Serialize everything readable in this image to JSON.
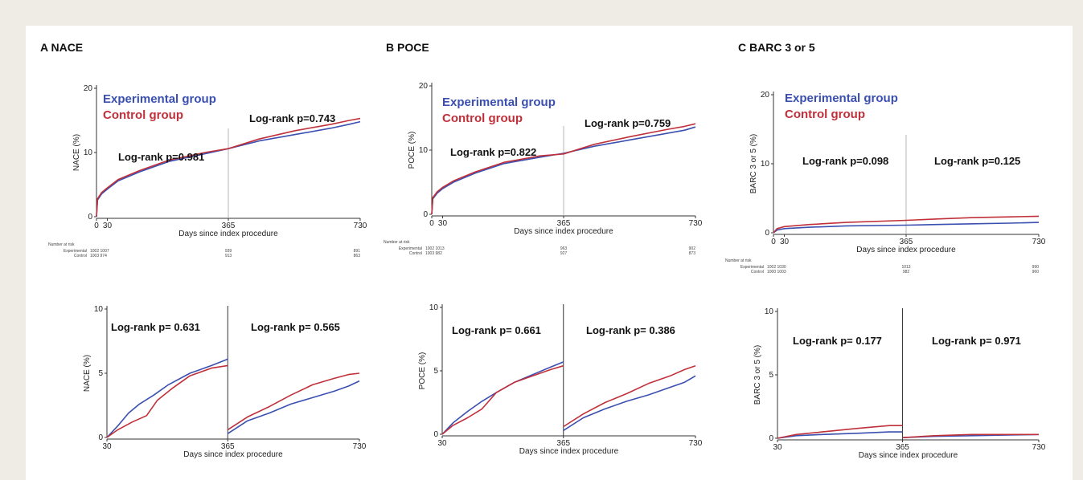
{
  "colors": {
    "experimental": "#3a4fb0",
    "control": "#c0303a"
  },
  "legend": {
    "experimental": "Experimental group",
    "control": "Control group"
  },
  "chart_data": [
    {
      "id": "A",
      "type": "line",
      "title": "A  NACE",
      "ylabel": "NACE (%)",
      "xlabel": "Days since index procedure",
      "top": {
        "ylim": [
          0,
          20
        ],
        "yticks": [
          "0",
          "10",
          "20"
        ],
        "xticks": [
          "0",
          "30",
          "365",
          "730"
        ],
        "pvalues": [
          "Log-rank p=0.981",
          "Log-rank p=0.743"
        ],
        "series": [
          {
            "name": "Experimental group",
            "points": [
              [
                0,
                0
              ],
              [
                3,
                2.6
              ],
              [
                15,
                3.6
              ],
              [
                30,
                4.3
              ],
              [
                60,
                5.6
              ],
              [
                120,
                7.0
              ],
              [
                200,
                8.6
              ],
              [
                300,
                9.8
              ],
              [
                365,
                10.6
              ],
              [
                450,
                11.8
              ],
              [
                550,
                12.8
              ],
              [
                650,
                13.8
              ],
              [
                700,
                14.4
              ],
              [
                730,
                14.8
              ]
            ]
          },
          {
            "name": "Control group",
            "points": [
              [
                0,
                0
              ],
              [
                3,
                2.8
              ],
              [
                15,
                3.8
              ],
              [
                30,
                4.5
              ],
              [
                60,
                5.8
              ],
              [
                120,
                7.2
              ],
              [
                200,
                8.8
              ],
              [
                300,
                10.0
              ],
              [
                365,
                10.6
              ],
              [
                450,
                12.1
              ],
              [
                550,
                13.4
              ],
              [
                650,
                14.4
              ],
              [
                700,
                15.0
              ],
              [
                730,
                15.3
              ]
            ]
          }
        ],
        "risk": {
          "label": "Number at risk",
          "rows": [
            {
              "name": "Experimental",
              "values": [
                "1002 1007",
                "939",
                "891"
              ]
            },
            {
              "name": "Control",
              "values": [
                "1003 974",
                "913",
                "863"
              ]
            }
          ]
        }
      },
      "bottom": {
        "ylim": [
          0,
          10
        ],
        "yticks": [
          "0",
          "5",
          "10"
        ],
        "xticks": [
          "30",
          "365",
          "730"
        ],
        "pvalues": [
          "Log-rank p= 0.631",
          "Log-rank p= 0.565"
        ],
        "series": [
          {
            "name": "Experimental group",
            "points": [
              [
                30,
                0
              ],
              [
                60,
                0.9
              ],
              [
                90,
                1.9
              ],
              [
                120,
                2.6
              ],
              [
                160,
                3.3
              ],
              [
                200,
                4.1
              ],
              [
                260,
                5.0
              ],
              [
                320,
                5.6
              ],
              [
                365,
                6.1
              ],
              [
                365,
                0.3
              ],
              [
                420,
                1.3
              ],
              [
                480,
                1.9
              ],
              [
                540,
                2.6
              ],
              [
                600,
                3.1
              ],
              [
                660,
                3.6
              ],
              [
                700,
                4.0
              ],
              [
                730,
                4.4
              ]
            ]
          },
          {
            "name": "Control group",
            "points": [
              [
                30,
                0
              ],
              [
                60,
                0.6
              ],
              [
                100,
                1.2
              ],
              [
                140,
                1.7
              ],
              [
                170,
                2.9
              ],
              [
                210,
                3.8
              ],
              [
                260,
                4.8
              ],
              [
                320,
                5.4
              ],
              [
                365,
                5.6
              ],
              [
                365,
                0.6
              ],
              [
                420,
                1.6
              ],
              [
                480,
                2.4
              ],
              [
                540,
                3.3
              ],
              [
                600,
                4.1
              ],
              [
                660,
                4.6
              ],
              [
                700,
                4.9
              ],
              [
                730,
                5.0
              ]
            ]
          }
        ]
      }
    },
    {
      "id": "B",
      "type": "line",
      "title": "B  POCE",
      "ylabel": "POCE (%)",
      "xlabel": "Days since index procedure",
      "top": {
        "ylim": [
          0,
          20
        ],
        "yticks": [
          "0",
          "10",
          "20"
        ],
        "xticks": [
          "0",
          "30",
          "365",
          "730"
        ],
        "pvalues": [
          "Log-rank p=0.822",
          "Log-rank p=0.759"
        ],
        "series": [
          {
            "name": "Experimental group",
            "points": [
              [
                0,
                0
              ],
              [
                3,
                2.4
              ],
              [
                15,
                3.3
              ],
              [
                30,
                4.0
              ],
              [
                60,
                5.0
              ],
              [
                120,
                6.4
              ],
              [
                200,
                7.9
              ],
              [
                300,
                8.9
              ],
              [
                365,
                9.5
              ],
              [
                450,
                10.6
              ],
              [
                550,
                11.6
              ],
              [
                650,
                12.6
              ],
              [
                700,
                13.1
              ],
              [
                730,
                13.6
              ]
            ]
          },
          {
            "name": "Control group",
            "points": [
              [
                0,
                0
              ],
              [
                3,
                2.6
              ],
              [
                15,
                3.5
              ],
              [
                30,
                4.2
              ],
              [
                60,
                5.2
              ],
              [
                120,
                6.6
              ],
              [
                200,
                8.1
              ],
              [
                300,
                9.1
              ],
              [
                365,
                9.4
              ],
              [
                450,
                10.9
              ],
              [
                550,
                12.1
              ],
              [
                650,
                13.2
              ],
              [
                700,
                13.7
              ],
              [
                730,
                14.1
              ]
            ]
          }
        ],
        "risk": {
          "label": "Number at risk",
          "rows": [
            {
              "name": "Experimental",
              "values": [
                "1002 1013",
                "963",
                "902"
              ]
            },
            {
              "name": "Control",
              "values": [
                "1003 982",
                "927",
                "873"
              ]
            }
          ]
        }
      },
      "bottom": {
        "ylim": [
          0,
          10
        ],
        "yticks": [
          "0",
          "5",
          "10"
        ],
        "xticks": [
          "30",
          "365",
          "730"
        ],
        "pvalues": [
          "Log-rank p= 0.661",
          "Log-rank p= 0.386"
        ],
        "series": [
          {
            "name": "Experimental group",
            "points": [
              [
                30,
                0
              ],
              [
                60,
                0.9
              ],
              [
                100,
                1.8
              ],
              [
                140,
                2.6
              ],
              [
                180,
                3.3
              ],
              [
                230,
                4.1
              ],
              [
                280,
                4.7
              ],
              [
                330,
                5.3
              ],
              [
                365,
                5.7
              ],
              [
                365,
                0.3
              ],
              [
                420,
                1.3
              ],
              [
                480,
                2.0
              ],
              [
                540,
                2.6
              ],
              [
                600,
                3.1
              ],
              [
                660,
                3.7
              ],
              [
                700,
                4.1
              ],
              [
                730,
                4.6
              ]
            ]
          },
          {
            "name": "Control group",
            "points": [
              [
                30,
                0
              ],
              [
                60,
                0.7
              ],
              [
                100,
                1.3
              ],
              [
                140,
                2.0
              ],
              [
                180,
                3.3
              ],
              [
                230,
                4.1
              ],
              [
                280,
                4.6
              ],
              [
                330,
                5.1
              ],
              [
                365,
                5.4
              ],
              [
                365,
                0.6
              ],
              [
                420,
                1.6
              ],
              [
                480,
                2.5
              ],
              [
                540,
                3.2
              ],
              [
                600,
                4.0
              ],
              [
                660,
                4.6
              ],
              [
                700,
                5.1
              ],
              [
                730,
                5.4
              ]
            ]
          }
        ]
      }
    },
    {
      "id": "C",
      "type": "line",
      "title": "C  BARC 3 or 5",
      "ylabel": "BARC 3 or 5 (%)",
      "xlabel": "Days since index procedure",
      "top": {
        "ylim": [
          0,
          20
        ],
        "yticks": [
          "0",
          "10",
          "20"
        ],
        "xticks": [
          "0",
          "30",
          "365",
          "730"
        ],
        "pvalues": [
          "Log-rank p=0.098",
          "Log-rank p=0.125"
        ],
        "series": [
          {
            "name": "Experimental group",
            "points": [
              [
                0,
                0
              ],
              [
                10,
                0.4
              ],
              [
                30,
                0.6
              ],
              [
                100,
                0.8
              ],
              [
                200,
                1.0
              ],
              [
                365,
                1.1
              ],
              [
                450,
                1.2
              ],
              [
                550,
                1.3
              ],
              [
                650,
                1.4
              ],
              [
                730,
                1.5
              ]
            ]
          },
          {
            "name": "Control group",
            "points": [
              [
                0,
                0
              ],
              [
                10,
                0.6
              ],
              [
                30,
                0.9
              ],
              [
                100,
                1.2
              ],
              [
                200,
                1.5
              ],
              [
                365,
                1.8
              ],
              [
                450,
                2.0
              ],
              [
                550,
                2.2
              ],
              [
                650,
                2.3
              ],
              [
                730,
                2.4
              ]
            ]
          }
        ],
        "risk": {
          "label": "Number at risk",
          "rows": [
            {
              "name": "Experimental",
              "values": [
                "1002 1030",
                "1013",
                "990"
              ]
            },
            {
              "name": "Control",
              "values": [
                "1000 1003",
                "982",
                "960"
              ]
            }
          ]
        }
      },
      "bottom": {
        "ylim": [
          0,
          10
        ],
        "yticks": [
          "0",
          "5",
          "10"
        ],
        "xticks": [
          "30",
          "365",
          "730"
        ],
        "pvalues": [
          "Log-rank p= 0.177",
          "Log-rank p= 0.971"
        ],
        "series": [
          {
            "name": "Experimental group",
            "points": [
              [
                30,
                0
              ],
              [
                80,
                0.2
              ],
              [
                150,
                0.3
              ],
              [
                250,
                0.4
              ],
              [
                330,
                0.5
              ],
              [
                365,
                0.5
              ],
              [
                365,
                0.05
              ],
              [
                450,
                0.15
              ],
              [
                550,
                0.2
              ],
              [
                650,
                0.25
              ],
              [
                730,
                0.3
              ]
            ]
          },
          {
            "name": "Control group",
            "points": [
              [
                30,
                0
              ],
              [
                80,
                0.3
              ],
              [
                150,
                0.5
              ],
              [
                250,
                0.8
              ],
              [
                330,
                1.0
              ],
              [
                365,
                1.0
              ],
              [
                365,
                0.05
              ],
              [
                450,
                0.2
              ],
              [
                550,
                0.3
              ],
              [
                650,
                0.3
              ],
              [
                730,
                0.3
              ]
            ]
          }
        ]
      }
    }
  ]
}
